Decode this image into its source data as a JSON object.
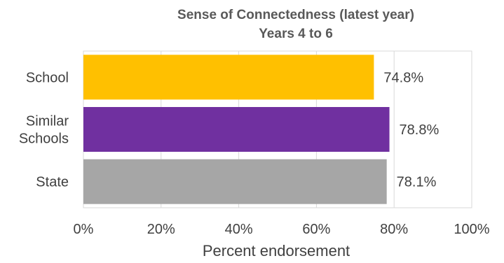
{
  "chart_data": {
    "type": "bar",
    "orientation": "horizontal",
    "title": "Sense of Connectedness (latest year)",
    "subtitle": "Years 4 to 6",
    "xlabel": "Percent endorsement",
    "ylabel": "",
    "xlim": [
      0,
      100
    ],
    "xticks": [
      "0%",
      "20%",
      "40%",
      "60%",
      "80%",
      "100%"
    ],
    "grid": true,
    "categories": [
      {
        "name": "School",
        "lines": [
          "School"
        ],
        "value": 74.8,
        "label": "74.8%",
        "color": "#FFC000"
      },
      {
        "name": "Similar Schools",
        "lines": [
          "Similar",
          "Schools"
        ],
        "value": 78.8,
        "label": "78.8%",
        "color": "#7030A0"
      },
      {
        "name": "State",
        "lines": [
          "State"
        ],
        "value": 78.1,
        "label": "78.1%",
        "color": "#A6A6A6"
      }
    ]
  }
}
